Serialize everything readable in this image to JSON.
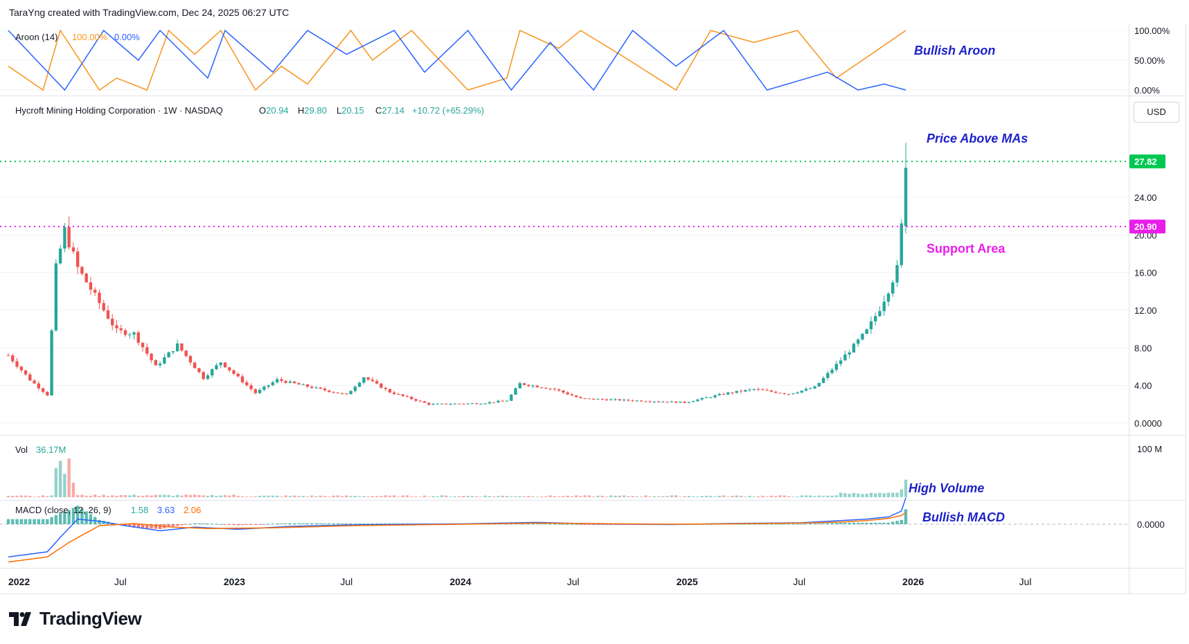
{
  "header": {
    "credit": "TaraYng created with TradingView.com, Dec 24, 2025 06:27 UTC"
  },
  "brand": {
    "name": "TradingView"
  },
  "controls": {
    "currency": "USD"
  },
  "colors": {
    "up": "#26a69a",
    "down": "#ef5350",
    "aroon_up": "#f7931a",
    "aroon_down": "#2962ff",
    "macd_line": "#2962ff",
    "signal_line": "#ff6d00",
    "green_level": "#00c853",
    "support_level": "#e91ee9",
    "annotation_blue": "#1e22c8",
    "annotation_magenta": "#e91ee9"
  },
  "chart_data": [
    {
      "type": "candlestick",
      "name_label": "Hycroft Mining Holding Corporation · 1W · NASDAQ",
      "ohlc_header": {
        "o_label": "O",
        "o": "20.94",
        "h_label": "H",
        "h": "29.80",
        "l_label": "L",
        "l": "20.15",
        "c_label": "C",
        "c": "27.14",
        "change": "+10.72 (+65.29%)"
      },
      "price_axis": {
        "ticks": [
          "0.0000",
          "4.00",
          "8.00",
          "12.00",
          "16.00",
          "20.00",
          "24.00"
        ],
        "ylim": [
          0,
          32
        ]
      },
      "time_axis": {
        "labels": [
          "2022",
          "Jul",
          "2023",
          "Jul",
          "2024",
          "Jul",
          "2025",
          "Jul",
          "2026",
          "Jul"
        ],
        "xlim": [
          "2022-01-01",
          "2026-12-15"
        ]
      },
      "levels": [
        {
          "value": 27.82,
          "label": "27.82",
          "style": "dotted",
          "color_key": "green_level"
        },
        {
          "value": 20.9,
          "label": "20.90",
          "style": "dotted",
          "color_key": "support_level"
        }
      ],
      "annotations": [
        {
          "text": "Price Above MAs",
          "style": "bold-italic",
          "color_key": "annotation_blue"
        },
        {
          "text": "Support Area",
          "style": "bold",
          "color_key": "annotation_magenta"
        }
      ],
      "anchors": [
        {
          "date": "2022-01-01",
          "price": 7.2
        },
        {
          "date": "2022-02-05",
          "price": 4.6
        },
        {
          "date": "2022-03-05",
          "price": 3.0
        },
        {
          "date": "2022-03-19",
          "price": 16.5
        },
        {
          "date": "2022-04-02",
          "price": 20.5
        },
        {
          "date": "2022-04-23",
          "price": 16.5
        },
        {
          "date": "2022-05-21",
          "price": 13.5
        },
        {
          "date": "2022-06-25",
          "price": 9.8
        },
        {
          "date": "2022-07-23",
          "price": 9.5
        },
        {
          "date": "2022-08-27",
          "price": 6.0
        },
        {
          "date": "2022-10-01",
          "price": 8.3
        },
        {
          "date": "2022-11-12",
          "price": 4.8
        },
        {
          "date": "2022-12-10",
          "price": 6.5
        },
        {
          "date": "2023-02-04",
          "price": 3.2
        },
        {
          "date": "2023-03-11",
          "price": 4.6
        },
        {
          "date": "2023-07-01",
          "price": 3.0
        },
        {
          "date": "2023-07-29",
          "price": 4.9
        },
        {
          "date": "2023-09-09",
          "price": 3.3
        },
        {
          "date": "2023-11-11",
          "price": 2.0
        },
        {
          "date": "2024-02-03",
          "price": 2.1
        },
        {
          "date": "2024-03-16",
          "price": 2.4
        },
        {
          "date": "2024-04-06",
          "price": 4.2
        },
        {
          "date": "2024-06-01",
          "price": 3.6
        },
        {
          "date": "2024-07-13",
          "price": 2.6
        },
        {
          "date": "2024-12-28",
          "price": 2.2
        },
        {
          "date": "2025-03-08",
          "price": 3.2
        },
        {
          "date": "2025-04-19",
          "price": 3.6
        },
        {
          "date": "2025-06-14",
          "price": 3.1
        },
        {
          "date": "2025-07-26",
          "price": 3.8
        },
        {
          "date": "2025-08-30",
          "price": 6.2
        },
        {
          "date": "2025-09-27",
          "price": 8.2
        },
        {
          "date": "2025-10-18",
          "price": 9.8
        },
        {
          "date": "2025-11-08",
          "price": 12.2
        },
        {
          "date": "2025-11-22",
          "price": 14.2
        },
        {
          "date": "2025-12-06",
          "price": 16.4
        },
        {
          "date": "2025-12-13",
          "price": 20.9
        },
        {
          "date": "2025-12-20",
          "price": 27.14
        }
      ]
    },
    {
      "type": "bar",
      "indicator": "Volume",
      "label": "Vol",
      "value_label": "36.17M",
      "axis": {
        "ticks": [
          "100 M"
        ],
        "ylim_millions": [
          0,
          110
        ]
      },
      "spikes_millions": [
        {
          "date": "2022-03-19",
          "value": 60
        },
        {
          "date": "2022-03-26",
          "value": 75
        },
        {
          "date": "2022-04-02",
          "value": 48
        },
        {
          "date": "2022-04-09",
          "value": 80
        },
        {
          "date": "2022-04-16",
          "value": 30
        },
        {
          "date": "2025-12-13",
          "value": 16
        },
        {
          "date": "2025-12-20",
          "value": 36.17
        }
      ],
      "annotation": {
        "text": "High Volume",
        "color_key": "annotation_blue"
      }
    },
    {
      "type": "line",
      "indicator": "Aroon (14)",
      "label": "Aroon (14)",
      "readout": [
        "100.00%",
        "0.00%"
      ],
      "axis": {
        "ticks": [
          "0.00%",
          "50.00%",
          "100.00%"
        ],
        "ylim": [
          0,
          100
        ]
      },
      "series": [
        {
          "name": "Aroon Up",
          "color_key": "aroon_up",
          "x": [
            "2022-01-01",
            "2022-02-26",
            "2022-03-26",
            "2022-05-28",
            "2022-06-25",
            "2022-08-13",
            "2022-09-17",
            "2022-10-29",
            "2022-12-10",
            "2023-02-04",
            "2023-03-18",
            "2023-04-29",
            "2023-07-08",
            "2023-08-12",
            "2023-10-14",
            "2024-01-13",
            "2024-03-16",
            "2024-04-06",
            "2024-06-08",
            "2024-07-13",
            "2024-09-14",
            "2024-12-14",
            "2025-02-08",
            "2025-04-19",
            "2025-06-28",
            "2025-08-30",
            "2025-12-20"
          ],
          "y": [
            40,
            0,
            100,
            0,
            20,
            0,
            100,
            60,
            100,
            0,
            40,
            10,
            100,
            50,
            100,
            0,
            20,
            100,
            70,
            100,
            60,
            0,
            100,
            80,
            100,
            20,
            100
          ]
        },
        {
          "name": "Aroon Down",
          "color_key": "aroon_down",
          "x": [
            "2022-01-01",
            "2022-04-02",
            "2022-06-04",
            "2022-07-30",
            "2022-09-03",
            "2022-11-19",
            "2022-12-17",
            "2023-03-04",
            "2023-04-29",
            "2023-07-01",
            "2023-09-16",
            "2023-11-04",
            "2024-01-13",
            "2024-03-23",
            "2024-05-25",
            "2024-08-03",
            "2024-10-05",
            "2024-12-14",
            "2025-03-01",
            "2025-05-10",
            "2025-08-16",
            "2025-10-04",
            "2025-11-15",
            "2025-12-20"
          ],
          "y": [
            100,
            0,
            100,
            50,
            100,
            20,
            100,
            30,
            100,
            60,
            100,
            30,
            100,
            0,
            80,
            0,
            100,
            40,
            100,
            0,
            30,
            0,
            10,
            0
          ]
        }
      ],
      "annotation": {
        "text": "Bullish Aroon",
        "color_key": "annotation_blue"
      }
    },
    {
      "type": "line",
      "indicator": "MACD (close, 12, 26, 9)",
      "label": "MACD (close, 12, 26, 9)",
      "readout": [
        "1.58",
        "3.63",
        "2.06"
      ],
      "axis": {
        "ticks": [
          "0.0000"
        ]
      },
      "series": [
        {
          "name": "MACD",
          "color_key": "macd_line",
          "x": [
            "2022-01-01",
            "2022-03-05",
            "2022-03-26",
            "2022-04-23",
            "2022-05-28",
            "2022-07-09",
            "2022-09-03",
            "2022-10-29",
            "2023-01-07",
            "2023-04-01",
            "2023-07-08",
            "2023-10-07",
            "2024-01-06",
            "2024-05-04",
            "2024-08-03",
            "2024-12-07",
            "2025-03-08",
            "2025-07-05",
            "2025-09-06",
            "2025-10-18",
            "2025-11-22",
            "2025-12-13",
            "2025-12-20"
          ],
          "y": [
            -4.5,
            -3.8,
            -1.8,
            0.7,
            0.4,
            -0.2,
            -0.9,
            -0.4,
            -0.7,
            -0.3,
            -0.1,
            0.0,
            0.05,
            0.25,
            0.05,
            -0.05,
            0.1,
            0.2,
            0.5,
            0.7,
            1.0,
            1.8,
            3.63
          ]
        },
        {
          "name": "Signal",
          "color_key": "signal_line",
          "x": [
            "2022-01-01",
            "2022-03-05",
            "2022-04-09",
            "2022-05-28",
            "2022-07-23",
            "2022-09-24",
            "2022-11-19",
            "2023-03-04",
            "2023-07-08",
            "2024-01-06",
            "2024-05-04",
            "2024-12-07",
            "2025-03-08",
            "2025-07-05",
            "2025-09-06",
            "2025-10-18",
            "2025-11-22",
            "2025-12-13",
            "2025-12-20"
          ],
          "y": [
            -5.2,
            -4.5,
            -2.5,
            -0.2,
            0.1,
            -0.4,
            -0.6,
            -0.5,
            -0.2,
            0.0,
            0.15,
            0.0,
            0.05,
            0.15,
            0.3,
            0.5,
            0.8,
            1.2,
            1.58
          ]
        }
      ],
      "histogram_last": 2.06,
      "annotation": {
        "text": "Bullish MACD",
        "color_key": "annotation_blue"
      }
    }
  ]
}
